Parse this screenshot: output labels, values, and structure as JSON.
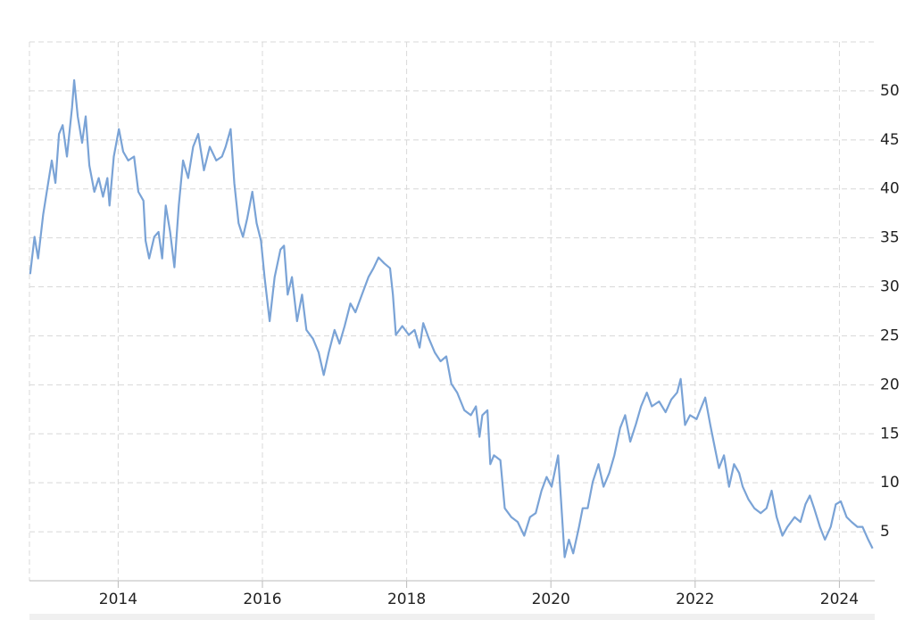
{
  "chart_data": {
    "type": "line",
    "x": [
      2012.78,
      2012.84,
      2012.89,
      2012.96,
      2013.01,
      2013.08,
      2013.13,
      2013.18,
      2013.23,
      2013.29,
      2013.36,
      2013.39,
      2013.44,
      2013.5,
      2013.55,
      2013.6,
      2013.67,
      2013.73,
      2013.79,
      2013.85,
      2013.88,
      2013.94,
      2014.01,
      2014.07,
      2014.14,
      2014.22,
      2014.28,
      2014.35,
      2014.38,
      2014.43,
      2014.5,
      2014.56,
      2014.61,
      2014.66,
      2014.72,
      2014.78,
      2014.84,
      2014.9,
      2014.97,
      2015.04,
      2015.11,
      2015.19,
      2015.27,
      2015.36,
      2015.44,
      2015.49,
      2015.56,
      2015.61,
      2015.67,
      2015.73,
      2015.79,
      2015.86,
      2015.92,
      2015.98,
      2016.03,
      2016.1,
      2016.17,
      2016.25,
      2016.3,
      2016.35,
      2016.41,
      2016.48,
      2016.55,
      2016.61,
      2016.7,
      2016.78,
      2016.85,
      2016.92,
      2017.0,
      2017.07,
      2017.14,
      2017.22,
      2017.29,
      2017.38,
      2017.47,
      2017.54,
      2017.61,
      2017.69,
      2017.77,
      2017.81,
      2017.85,
      2017.94,
      2018.03,
      2018.11,
      2018.18,
      2018.23,
      2018.31,
      2018.39,
      2018.47,
      2018.55,
      2018.62,
      2018.7,
      2018.8,
      2018.89,
      2018.96,
      2019.01,
      2019.05,
      2019.12,
      2019.16,
      2019.21,
      2019.3,
      2019.36,
      2019.45,
      2019.54,
      2019.63,
      2019.71,
      2019.79,
      2019.87,
      2019.94,
      2020.01,
      2020.1,
      2020.14,
      2020.19,
      2020.25,
      2020.31,
      2020.39,
      2020.44,
      2020.51,
      2020.58,
      2020.66,
      2020.73,
      2020.81,
      2020.88,
      2020.96,
      2021.03,
      2021.1,
      2021.18,
      2021.25,
      2021.33,
      2021.4,
      2021.5,
      2021.59,
      2021.67,
      2021.75,
      2021.8,
      2021.86,
      2021.93,
      2022.02,
      2022.09,
      2022.14,
      2022.21,
      2022.27,
      2022.33,
      2022.4,
      2022.47,
      2022.54,
      2022.61,
      2022.66,
      2022.74,
      2022.82,
      2022.91,
      2022.99,
      2023.06,
      2023.13,
      2023.21,
      2023.28,
      2023.38,
      2023.46,
      2023.53,
      2023.59,
      2023.65,
      2023.73,
      2023.8,
      2023.88,
      2023.95,
      2024.02,
      2024.1,
      2024.17,
      2024.25,
      2024.32,
      2024.4,
      2024.46
    ],
    "series": [
      {
        "color": "#7aa3d6",
        "values": [
          31.3,
          35.1,
          32.9,
          37.4,
          39.7,
          42.9,
          40.6,
          45.6,
          46.5,
          43.3,
          48.3,
          51.1,
          47.4,
          44.7,
          47.4,
          42.4,
          39.7,
          41.1,
          39.2,
          41.1,
          38.3,
          43.3,
          46.1,
          43.8,
          42.9,
          43.3,
          39.7,
          38.8,
          34.7,
          32.9,
          35.1,
          35.6,
          32.9,
          38.3,
          35.6,
          32.0,
          38.3,
          42.9,
          41.1,
          44.3,
          45.6,
          41.9,
          44.3,
          42.9,
          43.3,
          44.3,
          46.1,
          40.6,
          36.5,
          35.1,
          37.0,
          39.7,
          36.5,
          34.7,
          31.0,
          26.5,
          31.0,
          33.8,
          34.2,
          29.2,
          31.0,
          26.5,
          29.2,
          25.6,
          24.7,
          23.3,
          21.0,
          23.3,
          25.6,
          24.2,
          26.0,
          28.3,
          27.4,
          29.2,
          31.0,
          31.9,
          33.0,
          32.4,
          31.9,
          29.2,
          25.1,
          26.0,
          25.1,
          25.6,
          23.8,
          26.3,
          24.7,
          23.3,
          22.4,
          22.9,
          20.1,
          19.2,
          17.4,
          16.9,
          17.8,
          14.7,
          16.9,
          17.4,
          11.9,
          12.8,
          12.3,
          7.4,
          6.5,
          6.0,
          4.6,
          6.5,
          6.9,
          9.2,
          10.6,
          9.6,
          12.8,
          8.3,
          2.4,
          4.2,
          2.8,
          5.5,
          7.4,
          7.4,
          10.1,
          11.9,
          9.6,
          11.0,
          12.8,
          15.6,
          16.9,
          14.2,
          16.0,
          17.8,
          19.2,
          17.8,
          18.3,
          17.2,
          18.5,
          19.2,
          20.6,
          15.9,
          16.9,
          16.5,
          17.8,
          18.7,
          15.9,
          13.7,
          11.5,
          12.8,
          9.6,
          11.9,
          11.0,
          9.6,
          8.3,
          7.4,
          6.9,
          7.4,
          9.2,
          6.5,
          4.6,
          5.5,
          6.5,
          6.0,
          7.8,
          8.7,
          7.4,
          5.5,
          4.2,
          5.5,
          7.8,
          8.1,
          6.5,
          6.0,
          5.5,
          5.5,
          4.2,
          3.3
        ]
      }
    ],
    "xlim": [
      2012.77,
      2024.49
    ],
    "xticks": [
      2014,
      2016,
      2018,
      2020,
      2022,
      2024
    ],
    "ylim": [
      0,
      55
    ],
    "yticks": [
      5,
      10,
      15,
      20,
      25,
      30,
      35,
      40,
      45,
      50
    ],
    "grid": true
  }
}
